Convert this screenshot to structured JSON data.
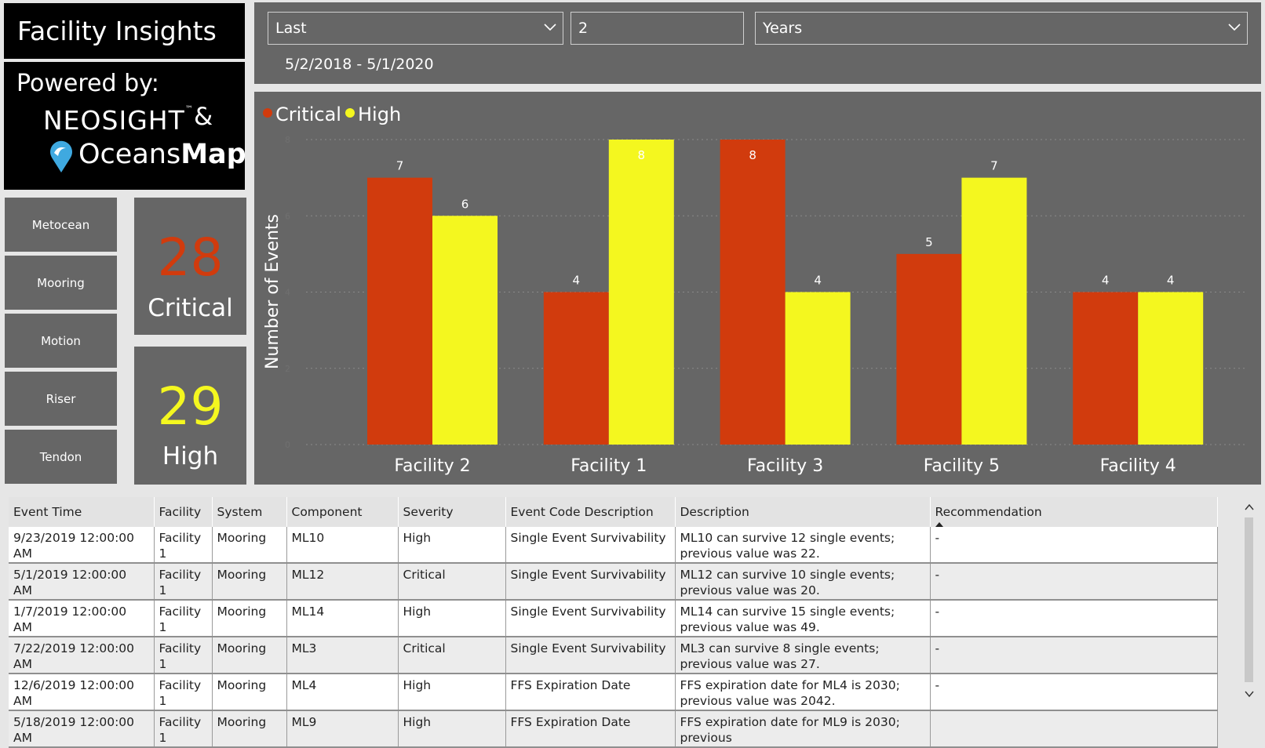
{
  "header": {
    "title": "Facility Insights"
  },
  "branding": {
    "powered_by": "Powered by:",
    "neosight": "NEOSIGHT",
    "ampersand": "&",
    "oceans": "Oceans",
    "map": "Map"
  },
  "nav_buttons": [
    "Metocean",
    "Mooring",
    "Motion",
    "Riser",
    "Tendon"
  ],
  "kpis": [
    {
      "value": "28",
      "label": "Critical",
      "color": "#d13b0d"
    },
    {
      "value": "29",
      "label": "High",
      "color": "#f4f71f"
    }
  ],
  "filters": {
    "period": "Last",
    "amount": "2",
    "unit": "Years",
    "date_range": "5/2/2018 - 5/1/2020"
  },
  "chart_data": {
    "type": "bar",
    "ylabel": "Number of Events",
    "ylim": [
      0,
      8
    ],
    "legend_position": "top-left",
    "grid": true,
    "categories": [
      "Facility 2",
      "Facility 1",
      "Facility 3",
      "Facility 5",
      "Facility 4"
    ],
    "series": [
      {
        "name": "Critical",
        "color": "#d13b0d",
        "values": [
          7,
          4,
          8,
          5,
          4
        ]
      },
      {
        "name": "High",
        "color": "#f4f71f",
        "values": [
          6,
          8,
          4,
          7,
          4
        ]
      }
    ]
  },
  "table": {
    "columns": [
      "Event Time",
      "Facility",
      "System",
      "Component",
      "Severity",
      "Event Code Description",
      "Description",
      "Recommendation"
    ],
    "rows": [
      [
        "9/23/2019 12:00:00 AM",
        "Facility 1",
        "Mooring",
        "ML10",
        "High",
        "Single Event Survivability",
        "ML10 can survive 12 single events; previous value was 22.",
        "-"
      ],
      [
        "5/1/2019 12:00:00 AM",
        "Facility 1",
        "Mooring",
        "ML12",
        "Critical",
        "Single Event Survivability",
        "ML12 can survive 10 single events; previous value was 20.",
        "-"
      ],
      [
        "1/7/2019 12:00:00 AM",
        "Facility 1",
        "Mooring",
        "ML14",
        "High",
        "Single Event Survivability",
        "ML14 can survive 15 single events; previous value was 49.",
        "-"
      ],
      [
        "7/22/2019 12:00:00 AM",
        "Facility 1",
        "Mooring",
        "ML3",
        "Critical",
        "Single Event Survivability",
        "ML3 can survive 8 single events; previous value was 27.",
        "-"
      ],
      [
        "12/6/2019 12:00:00 AM",
        "Facility 1",
        "Mooring",
        "ML4",
        "High",
        "FFS Expiration Date",
        "FFS expiration date for ML4 is 2030; previous value was 2042.",
        "-"
      ],
      [
        "5/18/2019 12:00:00 AM",
        "Facility 1",
        "Mooring",
        "ML9",
        "High",
        "FFS Expiration Date",
        "FFS expiration date for ML9 is 2030; previous",
        ""
      ]
    ]
  }
}
